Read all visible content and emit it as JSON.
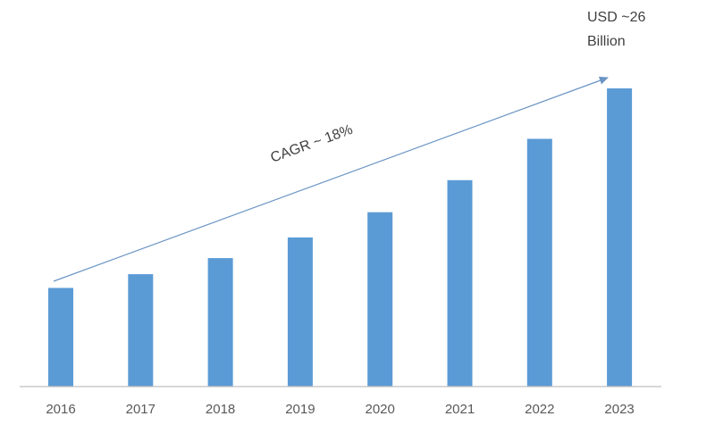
{
  "chart_data": {
    "type": "bar",
    "categories": [
      "2016",
      "2017",
      "2018",
      "2019",
      "2020",
      "2021",
      "2022",
      "2023"
    ],
    "values": [
      8.6,
      9.8,
      11.2,
      13.0,
      15.2,
      18.0,
      21.6,
      26.0
    ],
    "ylim": [
      0,
      26
    ],
    "grid": false,
    "legend": "none",
    "bar_color": "#5b9bd5",
    "axis_color": "#bfbfbf",
    "trend_arrow": {
      "label": "CAGR ~ 18%",
      "color": "#6a94c4"
    },
    "end_annotation": {
      "line1": "USD ~26",
      "line2": "Billion"
    }
  }
}
